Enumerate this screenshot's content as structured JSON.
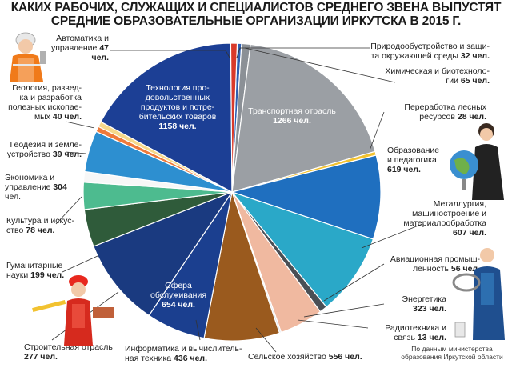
{
  "title_line1": "КАКИХ РАБОЧИХ, СЛУЖАЩИХ И СПЕЦИАЛИСТОВ СРЕДНЕГО ЗВЕНА ВЫПУСТЯТ",
  "title_line2": "СРЕДНИЕ ОБРАЗОВАТЕЛЬНЫЕ ОРГАНИЗАЦИИ ИРКУТСКА В 2015 Г.",
  "source_note": "По данным министерства образования Иркутской области",
  "unit": "чел.",
  "chart_data": {
    "type": "pie",
    "title": "КАКИХ РАБОЧИХ, СЛУЖАЩИХ И СПЕЦИАЛИСТОВ СРЕДНЕГО ЗВЕНА ВЫПУСТЯТ СРЕДНИЕ ОБРАЗОВАТЕЛЬНЫЕ ОРГАНИЗАЦИИ ИРКУТСКА В 2015 Г.",
    "unit": "чел.",
    "slices": [
      {
        "label": "Природообустройство и защита окружающей среды",
        "value": 32,
        "color": "#2e5fb0"
      },
      {
        "label": "Химическая и биотехнологии",
        "value": 65,
        "color": "#8b9096"
      },
      {
        "label": "Транспортная отрасль",
        "value": 1266,
        "color": "#9b9fa4"
      },
      {
        "label": "Переработка лесных ресурсов",
        "value": 28,
        "color": "#f2c230"
      },
      {
        "label": "Образование и педагогика",
        "value": 619,
        "color": "#1f6fbf"
      },
      {
        "label": "Металлургия, машиностроение и материалообработка",
        "value": 607,
        "color": "#2aa8c8"
      },
      {
        "label": "Авиационная промышленность",
        "value": 56,
        "color": "#4a4f55"
      },
      {
        "label": "Энергетика",
        "value": 323,
        "color": "#f0b9a0"
      },
      {
        "label": "Радиотехника и связь",
        "value": 13,
        "color": "#dfe4ea"
      },
      {
        "label": "Сельское хозяйство",
        "value": 556,
        "color": "#9a5a1e"
      },
      {
        "label": "Информатика и вычислительная техника",
        "value": 436,
        "color": "#1b3f8f"
      },
      {
        "label": "Сфера обслуживания",
        "value": 654,
        "color": "#1a3a80"
      },
      {
        "label": "Строительная отрасль",
        "value": 277,
        "color": "#2f5b3a"
      },
      {
        "label": "Гуманитарные науки",
        "value": 199,
        "color": "#4dbb8f"
      },
      {
        "label": "Культура и искусство",
        "value": 78,
        "color": "#f7f7f7"
      },
      {
        "label": "Экономика и управление",
        "value": 304,
        "color": "#2d8fd0"
      },
      {
        "label": "Геодезия и землеустройство",
        "value": 39,
        "color": "#ef7a3a"
      },
      {
        "label": "Геология, разведка и разработка полезных ископаемых",
        "value": 40,
        "color": "#f5d98a"
      },
      {
        "label": "Технология продовольственных продуктов и потребительских товаров",
        "value": 1158,
        "color": "#1c3f95"
      },
      {
        "label": "Автоматика и управление",
        "value": 47,
        "color": "#d93a2a"
      }
    ]
  },
  "labels": {
    "avtomatika": {
      "l1": "Автоматика и",
      "l2": "управление",
      "n": "47 чел."
    },
    "priroda": {
      "l1": "Природообустройство и защи-",
      "l2": "та окружающей среды",
      "n": "32 чел."
    },
    "himiya": {
      "l1": "Химическая и биотехноло-",
      "l2": "гии",
      "n": "65 чел."
    },
    "tehnologiya": {
      "l1": "Технология про-",
      "l2": "довольственных",
      "l3": "продуктов и потре-",
      "l4": "бительских товаров",
      "n": "1158 чел."
    },
    "transport": {
      "l1": "Транспортная отрасль",
      "n": "1266 чел."
    },
    "geologiya": {
      "l1": "Геология, развед-",
      "l2": "ка и разработка",
      "l3": "полезных ископае-",
      "l4": "мых",
      "n": "40 чел."
    },
    "les": {
      "l1": "Переработка лесных",
      "l2": "ресурсов",
      "n": "28 чел."
    },
    "geodeziya": {
      "l1": "Геодезия и земле-",
      "l2": "устройство",
      "n": "39 чел."
    },
    "obrazovanie": {
      "l1": "Образование",
      "l2": "и педагогика",
      "n": "619 чел."
    },
    "ekonomika": {
      "l1": "Экономика и",
      "l2": "управление",
      "n": "304",
      "n2": "чел."
    },
    "metallurgiya": {
      "l1": "Металлургия,",
      "l2": "машиностроение и",
      "l3": "материалообработка",
      "n": "607 чел."
    },
    "kultura": {
      "l1": "Культура и искус-",
      "l2": "ство",
      "n": "78 чел."
    },
    "gumanitarnye": {
      "l1": "Гуманитарные",
      "l2": "науки",
      "n": "199 чел."
    },
    "aviaciya": {
      "l1": "Авиационная промыш-",
      "l2": "ленность",
      "n": "56 чел."
    },
    "sfera": {
      "l1": "Сфера",
      "l2": "обслуживания",
      "n": "654 чел."
    },
    "energetika": {
      "l1": "Энергетика",
      "n": "323 чел."
    },
    "radio": {
      "l1": "Радиотехника и",
      "l2": "связь",
      "n": "13 чел."
    },
    "stroitelnaya": {
      "l1": "Строительная отрасль",
      "n": "277 чел."
    },
    "informatika": {
      "l1": "Информатика и вычислитель-",
      "l2": "ная техника",
      "n": "436 чел."
    },
    "selskoe": {
      "l1": "Сельское хозяйство",
      "n": "556 чел."
    }
  },
  "icons": [
    "worker-woman-icon",
    "teacher-globe-icon",
    "builder-icon",
    "electrician-icon"
  ]
}
